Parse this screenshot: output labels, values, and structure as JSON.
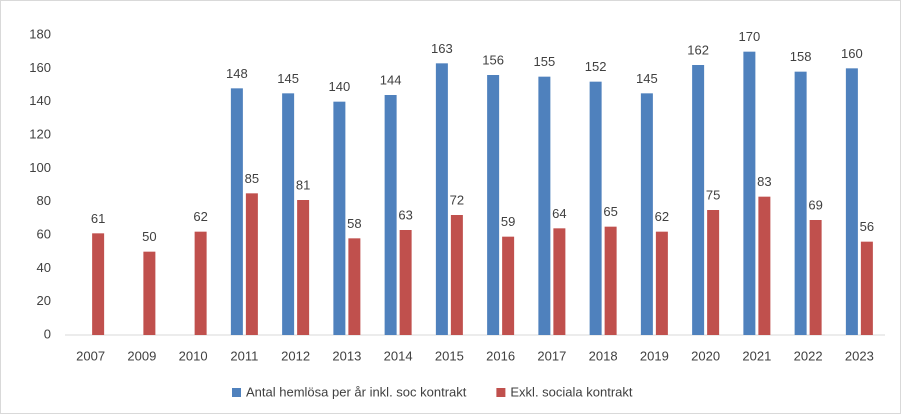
{
  "chart_data": {
    "type": "bar",
    "categories": [
      "2007",
      "2009",
      "2010",
      "2011",
      "2012",
      "2013",
      "2014",
      "2015",
      "2016",
      "2017",
      "2018",
      "2019",
      "2020",
      "2021",
      "2022",
      "2023"
    ],
    "series": [
      {
        "name": "Antal hemlösa per år inkl. soc kontrakt",
        "color": "#4f81bd",
        "values": [
          null,
          null,
          null,
          148,
          145,
          140,
          144,
          163,
          156,
          155,
          152,
          145,
          162,
          170,
          158,
          160
        ]
      },
      {
        "name": "Exkl. sociala kontrakt",
        "color": "#c0504d",
        "values": [
          61,
          50,
          62,
          85,
          81,
          58,
          63,
          72,
          59,
          64,
          65,
          62,
          75,
          83,
          69,
          56
        ]
      }
    ],
    "ylim": [
      0,
      180
    ],
    "yticks": [
      0,
      20,
      40,
      60,
      80,
      100,
      120,
      140,
      160,
      180
    ],
    "grid": false,
    "legend": "bottom"
  }
}
